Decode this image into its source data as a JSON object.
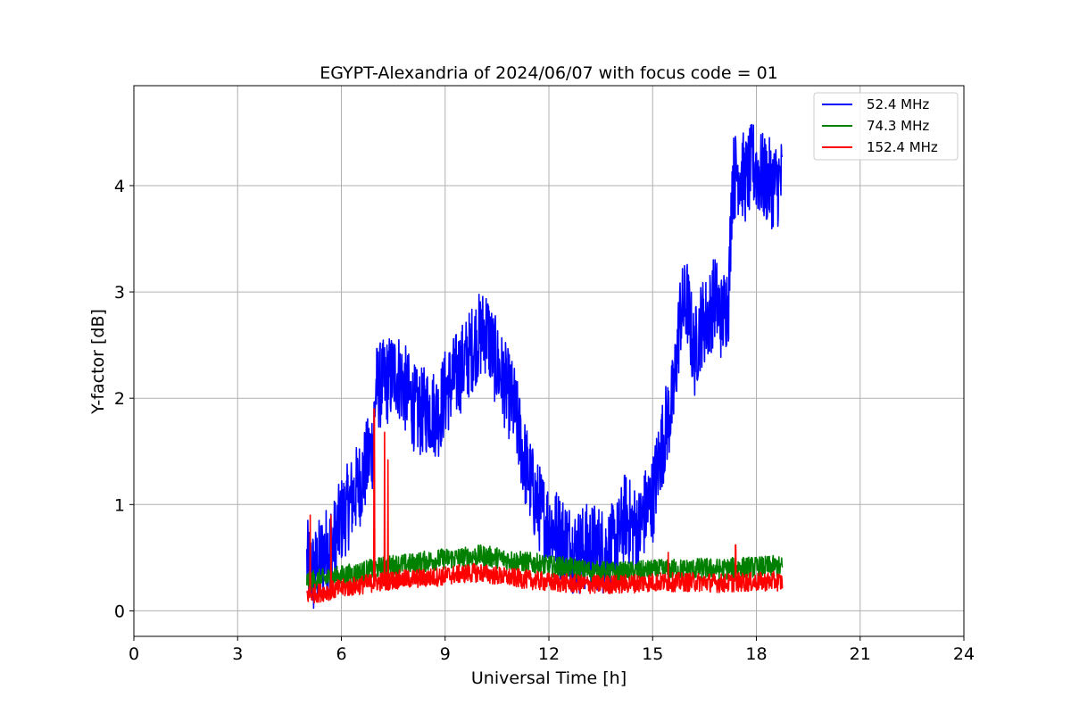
{
  "chart_data": {
    "type": "line",
    "title": "EGYPT-Alexandria of 2024/06/07 with focus code = 01",
    "xlabel": "Universal Time [h]",
    "ylabel": "Y-factor [dB]",
    "xlim": [
      0,
      24
    ],
    "ylim": [
      -0.24,
      4.94
    ],
    "xticks": [
      0,
      3,
      6,
      9,
      12,
      15,
      18,
      21,
      24
    ],
    "yticks": [
      0,
      1,
      2,
      3,
      4
    ],
    "grid": true,
    "legend_position": "top-right",
    "series": [
      {
        "name": " 52.4 MHz",
        "color": "#0000ff",
        "x": [
          5.0,
          5.2,
          5.5,
          5.8,
          6.0,
          6.3,
          6.6,
          6.9,
          7.0,
          7.3,
          7.6,
          7.9,
          8.2,
          8.5,
          8.8,
          9.0,
          9.3,
          9.6,
          9.9,
          10.2,
          10.4,
          10.7,
          11.0,
          11.3,
          11.6,
          11.9,
          12.2,
          12.5,
          12.8,
          13.1,
          13.4,
          13.7,
          14.0,
          14.2,
          14.4,
          14.6,
          14.8,
          15.0,
          15.2,
          15.4,
          15.6,
          15.8,
          16.0,
          16.2,
          16.4,
          16.6,
          16.8,
          17.0,
          17.2,
          17.3,
          17.5,
          17.7,
          17.9,
          18.1,
          18.3,
          18.5,
          18.75
        ],
        "y": [
          0.45,
          0.35,
          0.55,
          0.65,
          0.85,
          1.05,
          1.25,
          1.55,
          2.1,
          2.15,
          2.25,
          2.05,
          1.85,
          1.9,
          1.85,
          2.05,
          2.2,
          2.35,
          2.55,
          2.65,
          2.4,
          2.15,
          1.9,
          1.4,
          1.05,
          0.85,
          0.75,
          0.65,
          0.55,
          0.6,
          0.6,
          0.55,
          0.65,
          0.9,
          0.8,
          0.75,
          0.95,
          1.05,
          1.45,
          1.75,
          2.0,
          2.8,
          2.9,
          2.4,
          2.7,
          2.75,
          2.95,
          2.75,
          2.95,
          4.05,
          4.15,
          4.05,
          4.2,
          4.1,
          4.05,
          4.0,
          4.05
        ],
        "noise_amplitude": 0.42
      },
      {
        "name": " 74.3 MHz",
        "color": "#008000",
        "x": [
          5.0,
          5.5,
          6.0,
          6.5,
          7.0,
          7.5,
          8.0,
          8.5,
          9.0,
          9.5,
          10.0,
          10.5,
          11.0,
          11.5,
          12.0,
          12.5,
          13.0,
          13.5,
          14.0,
          14.5,
          15.0,
          15.5,
          16.0,
          16.5,
          17.0,
          17.5,
          18.0,
          18.5,
          18.75
        ],
        "y": [
          0.28,
          0.3,
          0.33,
          0.36,
          0.4,
          0.43,
          0.44,
          0.47,
          0.49,
          0.5,
          0.52,
          0.5,
          0.47,
          0.45,
          0.42,
          0.41,
          0.38,
          0.37,
          0.36,
          0.37,
          0.38,
          0.39,
          0.39,
          0.4,
          0.39,
          0.41,
          0.41,
          0.42,
          0.41
        ],
        "noise_amplitude": 0.1
      },
      {
        "name": "152.4 MHz",
        "color": "#ff0000",
        "x": [
          5.0,
          5.5,
          6.0,
          6.5,
          7.0,
          7.5,
          8.0,
          8.5,
          9.0,
          9.5,
          10.0,
          10.5,
          11.0,
          11.5,
          12.0,
          12.5,
          13.0,
          13.5,
          14.0,
          14.5,
          15.0,
          15.5,
          16.0,
          16.5,
          17.0,
          17.5,
          18.0,
          18.5,
          18.75
        ],
        "y": [
          0.15,
          0.18,
          0.21,
          0.24,
          0.27,
          0.29,
          0.3,
          0.31,
          0.33,
          0.35,
          0.36,
          0.33,
          0.31,
          0.29,
          0.27,
          0.26,
          0.25,
          0.25,
          0.25,
          0.26,
          0.27,
          0.27,
          0.27,
          0.27,
          0.26,
          0.27,
          0.27,
          0.28,
          0.27
        ],
        "noise_amplitude": 0.09,
        "spikes": [
          [
            5.1,
            0.9
          ],
          [
            5.7,
            0.9
          ],
          [
            6.95,
            1.9
          ],
          [
            7.25,
            1.68
          ],
          [
            7.35,
            1.42
          ],
          [
            15.45,
            0.55
          ],
          [
            17.4,
            0.62
          ]
        ]
      }
    ]
  }
}
